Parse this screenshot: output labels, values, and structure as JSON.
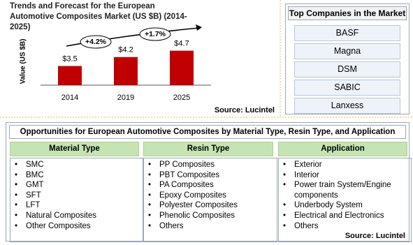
{
  "chart_data": {
    "type": "bar",
    "title": "Trends and Forecast for the European Automotive Composites Market (US $B) (2014-2025)",
    "y_label": "Value (US $B)",
    "categories": [
      "2014",
      "2019",
      "2025"
    ],
    "values": [
      3.5,
      4.2,
      4.7
    ],
    "value_labels": [
      "$3.5",
      "$4.2",
      "$4.7"
    ],
    "color": "#c00000",
    "ylim": [
      2,
      5.5
    ],
    "annotations": [
      "+4.2%",
      "+1.7%"
    ],
    "source": "Source: Lucintel"
  },
  "companies": {
    "title": "Top Companies in the Market",
    "items": [
      "BASF",
      "Magna",
      "DSM",
      "SABIC",
      "Lanxess"
    ]
  },
  "opportunities": {
    "title": "Opportunities for European Automotive Composites by Material Type, Resin Type, and Application",
    "source": "Source: Lucintel",
    "columns": [
      {
        "header": "Material Type",
        "items": [
          "SMC",
          "BMC",
          "GMT",
          "SFT",
          "LFT",
          "Natural Composites",
          "Other Composites"
        ]
      },
      {
        "header": "Resin Type",
        "items": [
          "PP Composites",
          "PBT Composites",
          "PA Composites",
          "Epoxy Composites",
          "Polyester Composites",
          "Phenolic Composites",
          "Others"
        ]
      },
      {
        "header": "Application",
        "items": [
          "Exterior",
          "Interior",
          "Power train System/Engine components",
          "Underbody System",
          "Electrical and Electronics",
          "Others"
        ]
      }
    ]
  }
}
